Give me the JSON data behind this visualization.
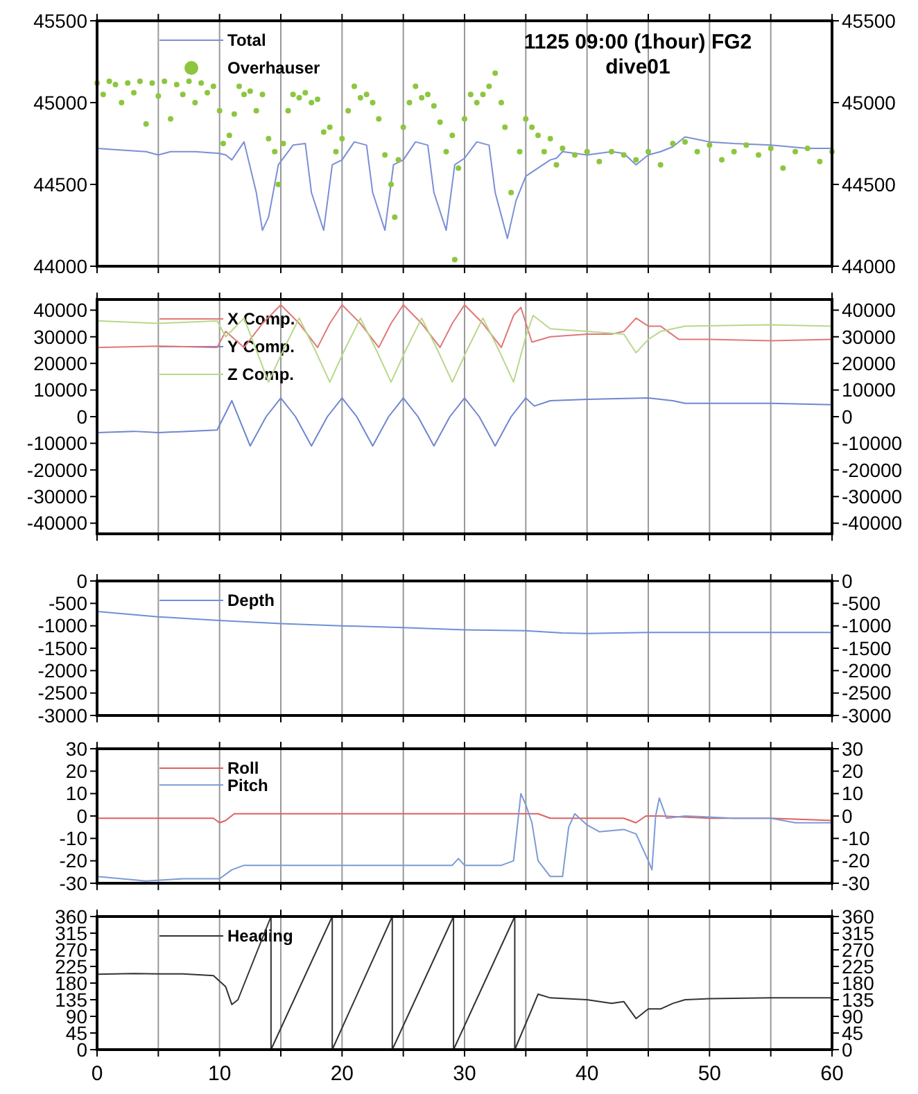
{
  "chart_data": [
    {
      "type": "line",
      "title": "1125 09:00 (1hour) FG2",
      "subtitle": "dive01",
      "xlim": [
        0,
        60
      ],
      "xticks": [
        0,
        {
          "value": 5,
          "label": null
        },
        10,
        {
          "value": 15,
          "label": null
        },
        20,
        {
          "value": 25,
          "label": null
        },
        30,
        {
          "value": 35,
          "label": null
        },
        40,
        {
          "value": 45,
          "label": null
        },
        50,
        {
          "value": 55,
          "label": null
        },
        60
      ],
      "ylim": [
        44000,
        45500
      ],
      "yticks": [
        44000,
        44500,
        45000,
        45500
      ],
      "y2lim": [
        44000,
        45500
      ],
      "y2ticks": [
        44000,
        44500,
        45000,
        45500
      ],
      "grid": "x",
      "legend": "top left",
      "tick_labels": "y",
      "series": [
        {
          "name": "Total",
          "color": "#7b8fd6",
          "x": [
            0,
            2,
            4,
            5,
            6,
            8,
            10,
            10.5,
            11,
            12,
            13,
            13.5,
            14,
            14.8,
            16,
            17,
            17.5,
            18.5,
            19.2,
            20,
            21,
            22,
            22.5,
            23.5,
            24.2,
            25,
            26,
            27,
            27.5,
            28.5,
            29.2,
            30,
            31,
            32,
            32.5,
            33.5,
            34.2,
            35,
            36,
            37,
            37.5,
            38,
            40,
            42,
            43,
            44,
            45,
            46,
            47,
            48,
            50,
            52,
            55,
            58,
            60
          ],
          "values": [
            44720,
            44710,
            44700,
            44680,
            44700,
            44700,
            44690,
            44680,
            44650,
            44760,
            44450,
            44220,
            44300,
            44620,
            44740,
            44750,
            44450,
            44220,
            44620,
            44650,
            44760,
            44740,
            44450,
            44220,
            44620,
            44650,
            44760,
            44740,
            44450,
            44220,
            44620,
            44660,
            44760,
            44740,
            44450,
            44170,
            44400,
            44550,
            44600,
            44650,
            44660,
            44700,
            44680,
            44700,
            44690,
            44620,
            44680,
            44700,
            44730,
            44790,
            44760,
            44750,
            44740,
            44720,
            44720
          ]
        },
        {
          "name": "Overhauser",
          "type": "scatter",
          "marker": "circle",
          "color": "#8cc63f",
          "x": [
            0,
            0.5,
            1,
            1.5,
            2,
            2.5,
            3,
            3.5,
            4,
            4.5,
            5,
            5.5,
            6,
            6.5,
            7,
            7.5,
            8,
            8.5,
            9,
            9.5,
            10,
            10.3,
            10.8,
            11.2,
            11.6,
            12,
            12.5,
            13,
            13.5,
            14,
            14.5,
            14.8,
            15.2,
            15.6,
            16,
            16.5,
            17,
            17.5,
            18,
            18.5,
            19,
            19.5,
            20,
            20.5,
            21,
            21.5,
            22,
            22.5,
            23,
            23.5,
            24,
            24.3,
            24.6,
            25,
            25.5,
            26,
            26.5,
            27,
            27.5,
            28,
            28.5,
            29,
            29.2,
            29.5,
            30,
            30.5,
            31,
            31.5,
            32,
            32.5,
            33,
            33.3,
            33.8,
            34.5,
            35,
            35.5,
            36,
            36.5,
            37,
            37.5,
            38,
            39,
            40,
            41,
            42,
            43,
            44,
            45,
            46,
            47,
            48,
            49,
            50,
            51,
            52,
            53,
            54,
            55,
            56,
            57,
            58,
            59,
            60
          ],
          "values": [
            45120,
            45050,
            45130,
            45110,
            45000,
            45120,
            45060,
            45130,
            44870,
            45120,
            45040,
            45130,
            44900,
            45110,
            45050,
            45130,
            45000,
            45120,
            45060,
            45100,
            44950,
            44750,
            44800,
            44930,
            45100,
            45050,
            45070,
            44950,
            45050,
            44780,
            44700,
            44500,
            44750,
            44950,
            45050,
            45030,
            45060,
            45000,
            45020,
            44820,
            44850,
            44700,
            44780,
            44950,
            45100,
            45030,
            45050,
            45000,
            44900,
            44680,
            44500,
            44300,
            44650,
            44850,
            45000,
            45100,
            45030,
            45050,
            44980,
            44880,
            44700,
            44800,
            44040,
            44600,
            44900,
            45050,
            45000,
            45050,
            45100,
            45180,
            45000,
            44850,
            44450,
            44700,
            44900,
            44850,
            44800,
            44700,
            44780,
            44620,
            44720,
            44680,
            44700,
            44640,
            44700,
            44680,
            44650,
            44700,
            44620,
            44750,
            44760,
            44700,
            44740,
            44650,
            44700,
            44740,
            44680,
            44720,
            44600,
            44700,
            44720,
            44640,
            44700
          ]
        }
      ]
    },
    {
      "type": "line",
      "xlim": [
        0,
        60
      ],
      "xticks": [
        0,
        {
          "value": 5,
          "label": null
        },
        10,
        {
          "value": 15,
          "label": null
        },
        20,
        {
          "value": 25,
          "label": null
        },
        30,
        {
          "value": 35,
          "label": null
        },
        40,
        {
          "value": 45,
          "label": null
        },
        50,
        {
          "value": 55,
          "label": null
        },
        60
      ],
      "ylim": [
        -44000,
        44000
      ],
      "yticks": [
        -40000,
        -30000,
        -20000,
        -10000,
        0,
        10000,
        20000,
        30000,
        40000
      ],
      "y2lim": [
        -44000,
        44000
      ],
      "y2ticks": [
        -40000,
        -30000,
        -20000,
        -10000,
        0,
        10000,
        20000,
        30000,
        40000
      ],
      "grid": "x",
      "legend": "top left",
      "tick_labels": "y",
      "series": [
        {
          "name": "X Comp.",
          "color": "#e07878",
          "x": [
            0,
            5,
            9.8,
            10.5,
            12,
            13.5,
            15,
            16.5,
            18,
            19,
            20,
            21.5,
            23,
            24,
            25,
            26.5,
            28,
            29,
            30,
            31.5,
            33,
            34,
            34.6,
            35.5,
            37,
            40,
            42,
            43,
            44,
            45,
            46,
            47.5,
            50,
            55,
            60
          ],
          "values": [
            26000,
            26500,
            26000,
            32000,
            26000,
            35000,
            42000,
            35000,
            26000,
            35000,
            42000,
            35000,
            26000,
            35000,
            42000,
            35000,
            26000,
            35000,
            42000,
            35000,
            26000,
            38000,
            41000,
            28000,
            30000,
            31000,
            31000,
            32000,
            37000,
            34000,
            34000,
            29000,
            29000,
            28500,
            29000
          ]
        },
        {
          "name": "Y Comp.",
          "color": "#6f86d0",
          "x": [
            0,
            3,
            5,
            9.8,
            11,
            12.5,
            13.8,
            15,
            16.2,
            17.5,
            18.8,
            20,
            21.2,
            22.5,
            23.8,
            25,
            26.2,
            27.5,
            28.8,
            30,
            31.2,
            32.5,
            33.8,
            35,
            35.7,
            37,
            40,
            45,
            47,
            48,
            55,
            60
          ],
          "values": [
            -6000,
            -5500,
            -6000,
            -5000,
            6000,
            -11000,
            0,
            7000,
            0,
            -11000,
            0,
            7000,
            0,
            -11000,
            0,
            7000,
            0,
            -11000,
            0,
            7000,
            0,
            -11000,
            0,
            7000,
            4000,
            6000,
            6500,
            7000,
            6000,
            5000,
            5000,
            4500
          ]
        },
        {
          "name": "Z Comp.",
          "color": "#b8d88a",
          "x": [
            0,
            5,
            9.8,
            10.5,
            12,
            13,
            14,
            15.2,
            16.5,
            17.8,
            19,
            20.2,
            21.5,
            22.8,
            24,
            25.2,
            26.5,
            27.8,
            29,
            30.2,
            31.5,
            32.8,
            34,
            35,
            35.6,
            37,
            40,
            43,
            44,
            45,
            46,
            48,
            55,
            60
          ],
          "values": [
            36000,
            35000,
            36000,
            30000,
            37000,
            25000,
            13000,
            25000,
            37000,
            25000,
            13000,
            25000,
            37000,
            25000,
            13000,
            25000,
            37000,
            25000,
            13000,
            25000,
            37000,
            25000,
            13000,
            30000,
            38000,
            33000,
            32000,
            31000,
            24000,
            29000,
            32000,
            34000,
            34500,
            34000
          ]
        }
      ]
    },
    {
      "type": "line",
      "xlim": [
        0,
        60
      ],
      "xticks": [
        0,
        {
          "value": 5,
          "label": null
        },
        10,
        {
          "value": 15,
          "label": null
        },
        20,
        {
          "value": 25,
          "label": null
        },
        30,
        {
          "value": 35,
          "label": null
        },
        40,
        {
          "value": 45,
          "label": null
        },
        50,
        {
          "value": 55,
          "label": null
        },
        60
      ],
      "ylim": [
        -3000,
        0
      ],
      "yticks": [
        -3000,
        -2500,
        -2000,
        -1500,
        -1000,
        -500,
        0
      ],
      "y2lim": [
        -3000,
        0
      ],
      "y2ticks": [
        -3000,
        -2500,
        -2000,
        -1500,
        -1000,
        -500,
        0
      ],
      "grid": "x",
      "legend": "top left",
      "tick_labels": "y",
      "series": [
        {
          "name": "Depth",
          "color": "#6f8fd6",
          "x": [
            0,
            5,
            10,
            15,
            20,
            25,
            30,
            35,
            38,
            40,
            45,
            50,
            60
          ],
          "values": [
            -680,
            -800,
            -880,
            -950,
            -1000,
            -1040,
            -1090,
            -1110,
            -1160,
            -1170,
            -1150,
            -1150,
            -1150
          ]
        }
      ]
    },
    {
      "type": "line",
      "xlim": [
        0,
        60
      ],
      "xticks": [
        0,
        {
          "value": 5,
          "label": null
        },
        10,
        {
          "value": 15,
          "label": null
        },
        20,
        {
          "value": 25,
          "label": null
        },
        30,
        {
          "value": 35,
          "label": null
        },
        40,
        {
          "value": 45,
          "label": null
        },
        50,
        {
          "value": 55,
          "label": null
        },
        60
      ],
      "ylim": [
        -30,
        30
      ],
      "yticks": [
        -30,
        -20,
        -10,
        0,
        10,
        20,
        30
      ],
      "y2lim": [
        -30,
        30
      ],
      "y2ticks": [
        -30,
        -20,
        -10,
        0,
        10,
        20,
        30
      ],
      "grid": "x",
      "legend": "top left",
      "tick_labels": "y",
      "series": [
        {
          "name": "Roll",
          "color": "#e06060",
          "x": [
            0,
            5,
            9.5,
            10,
            10.5,
            11.2,
            15,
            20,
            25,
            30,
            35,
            36,
            37,
            40,
            43,
            44,
            44.8,
            46,
            50,
            55,
            60
          ],
          "values": [
            -1,
            -1,
            -1,
            -3,
            -2,
            1,
            1,
            1,
            1,
            1,
            1,
            1,
            -1,
            -1,
            -1,
            -3,
            0,
            0,
            -1,
            -1,
            -2
          ]
        },
        {
          "name": "Pitch",
          "color": "#7b9ad6",
          "x": [
            0,
            2,
            4,
            7,
            10,
            11,
            12,
            15,
            20,
            25,
            29,
            29.5,
            30,
            33,
            34,
            34.6,
            35,
            35.5,
            36,
            37,
            38,
            38.5,
            39,
            40,
            41,
            43,
            44,
            45,
            45.3,
            45.6,
            45.9,
            46.5,
            48,
            52,
            55,
            57,
            60
          ],
          "values": [
            -27,
            -28,
            -29,
            -28,
            -28,
            -24,
            -22,
            -22,
            -22,
            -22,
            -22,
            -19,
            -22,
            -22,
            -20,
            10,
            5,
            -3,
            -20,
            -27,
            -27,
            -5,
            1,
            -4,
            -7,
            -6,
            -8,
            -20,
            -24,
            0,
            8,
            -1,
            0,
            -1,
            -1,
            -3,
            -3
          ]
        }
      ]
    },
    {
      "type": "line",
      "xlim": [
        0,
        60
      ],
      "xticks": [
        0,
        {
          "value": 5,
          "label": null
        },
        10,
        {
          "value": 15,
          "label": null
        },
        20,
        {
          "value": 25,
          "label": null
        },
        30,
        {
          "value": 35,
          "label": null
        },
        40,
        {
          "value": 45,
          "label": null
        },
        50,
        {
          "value": 55,
          "label": null
        },
        60
      ],
      "ylim": [
        0,
        360
      ],
      "yticks": [
        0,
        45,
        90,
        135,
        180,
        225,
        270,
        315,
        360
      ],
      "y2lim": [
        0,
        360
      ],
      "y2ticks": [
        0,
        45,
        90,
        135,
        180,
        225,
        270,
        315,
        360
      ],
      "grid": "x",
      "legend": "top left",
      "series": [
        {
          "name": "Heading",
          "color": "#333333",
          "x": [
            0,
            3,
            5,
            7,
            9.5,
            10.5,
            11,
            11.5,
            14.2,
            14.2,
            19.2,
            19.2,
            24.1,
            24.1,
            29.1,
            29.1,
            34.1,
            34.1,
            35.5,
            36,
            37,
            40,
            42,
            43,
            44,
            45,
            46,
            47,
            48,
            50,
            55,
            60
          ],
          "values": [
            204,
            206,
            205,
            205,
            200,
            170,
            122,
            135,
            360,
            0,
            360,
            0,
            360,
            0,
            360,
            0,
            360,
            0,
            110,
            150,
            140,
            135,
            125,
            130,
            84,
            110,
            110,
            125,
            135,
            138,
            140,
            140
          ]
        }
      ]
    }
  ]
}
